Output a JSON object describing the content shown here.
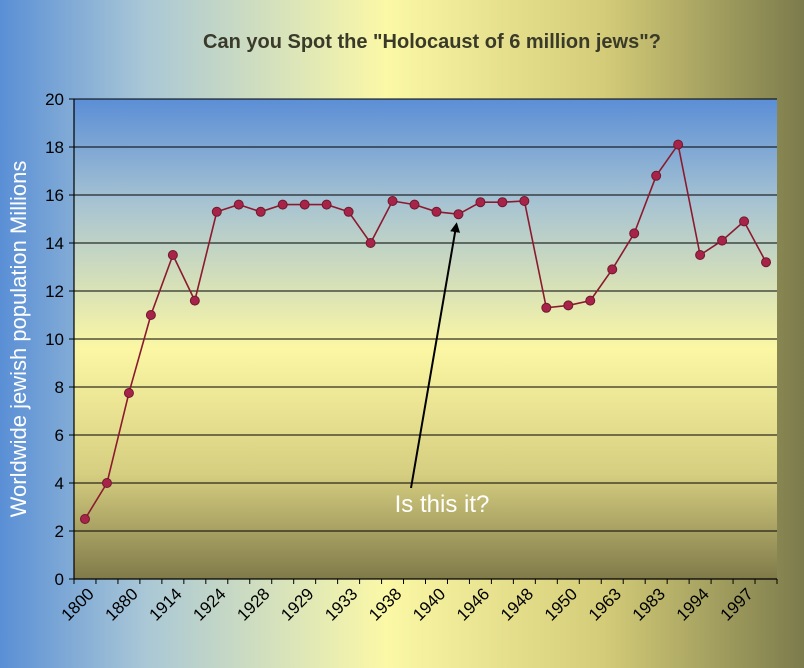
{
  "chart_data": {
    "type": "line",
    "title": "Can you Spot the \"Holocaust of 6 million jews\"?",
    "xlabel": "",
    "ylabel": "Worldwide jewish population Millions",
    "ylim": [
      0,
      20
    ],
    "yticks": [
      0,
      2,
      4,
      6,
      8,
      10,
      12,
      14,
      16,
      18,
      20
    ],
    "grid": true,
    "x_tick_labels": [
      "1800",
      "1880",
      "1914",
      "1924",
      "1928",
      "1929",
      "1933",
      "1938",
      "1940",
      "1946",
      "1948",
      "1950",
      "1963",
      "1983",
      "1994",
      "1997"
    ],
    "series": [
      {
        "values": [
          2.5,
          4.0,
          7.75,
          11.0,
          13.5,
          11.6,
          15.3,
          15.6,
          15.3,
          15.6,
          15.6,
          15.6,
          15.3,
          14.0,
          15.75,
          15.6,
          15.3,
          15.2,
          15.7,
          15.7,
          15.75,
          11.3,
          11.4,
          11.6,
          12.9,
          14.4,
          16.8,
          18.1,
          13.5,
          14.1,
          14.9,
          13.2
        ]
      }
    ],
    "annotations": [
      {
        "text": "Is this it?",
        "points_to_index": 17
      }
    ],
    "colors": {
      "line": "#8b1a2f",
      "marker": "#a8234a",
      "plot_top": "#5b8ed6",
      "plot_mid": "#fbf7a4",
      "plot_bottom": "#807a4a"
    }
  }
}
